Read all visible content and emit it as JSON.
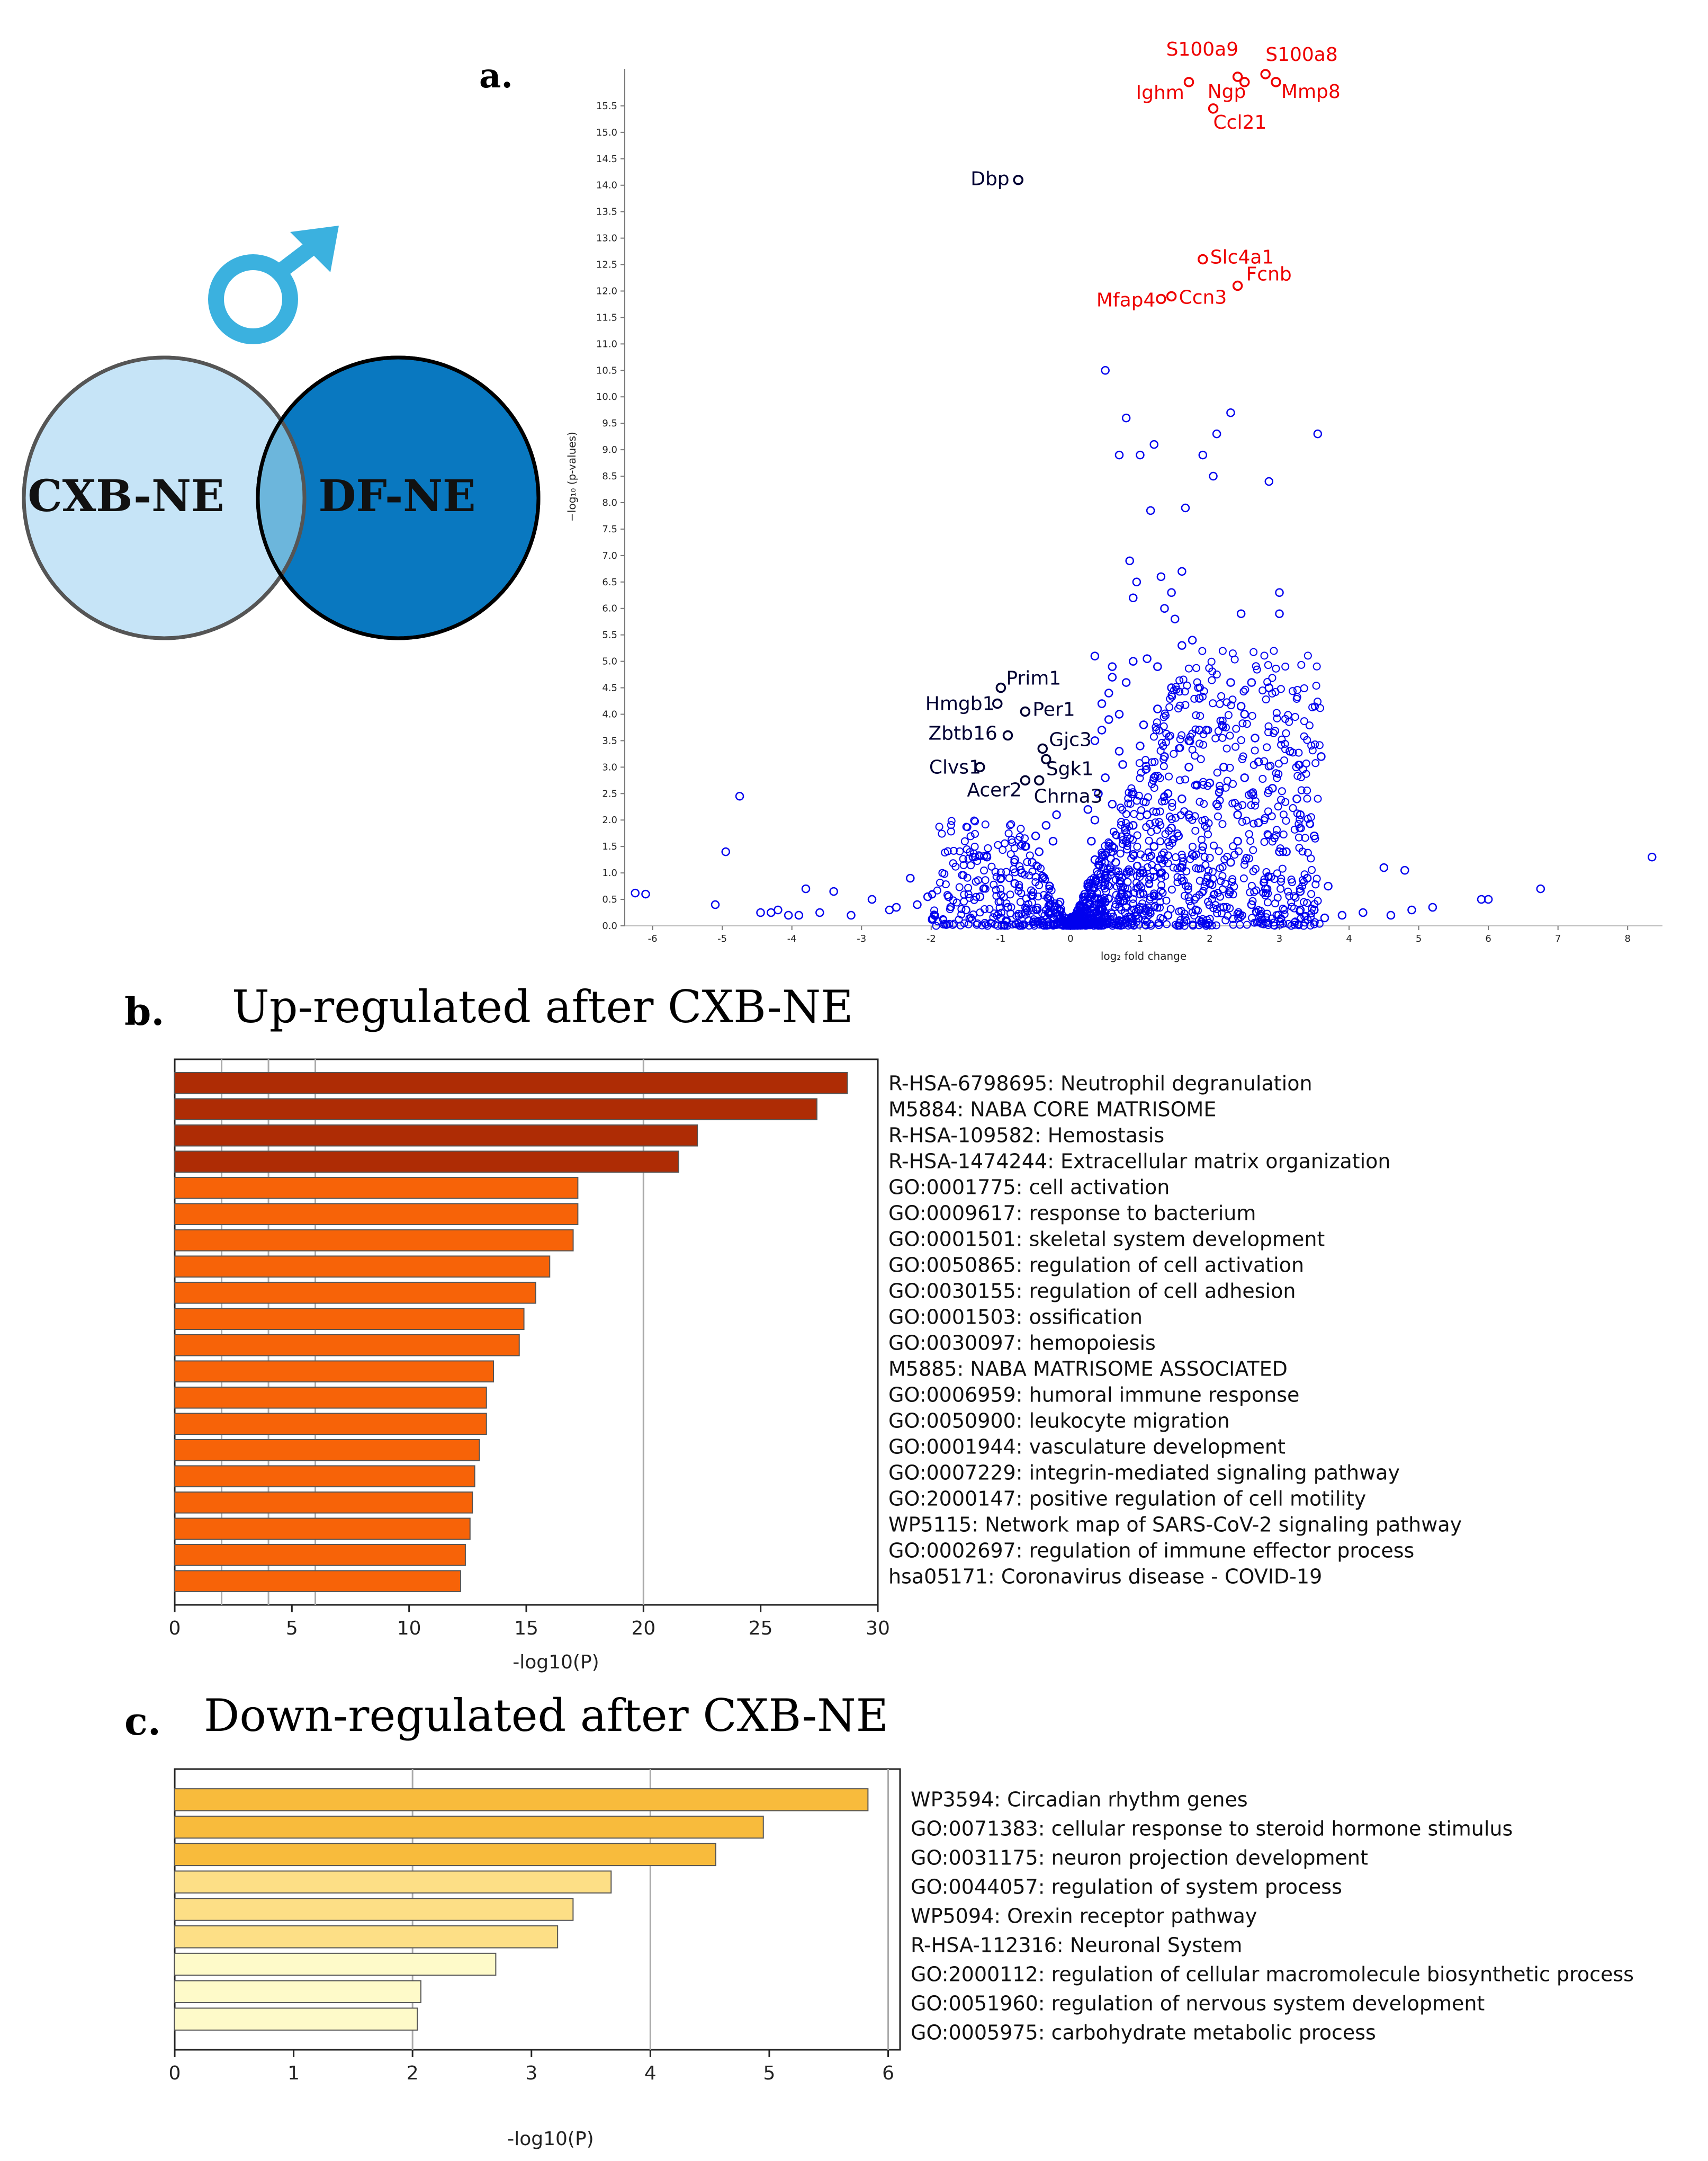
{
  "venn": {
    "left_label": "CXB-NE",
    "right_label": "DF-NE",
    "symbol_name": "male-symbol",
    "colors": {
      "left": "#c6e4f7",
      "right": "#0978c0",
      "overlap": "#6cb6dc",
      "symbol": "#3bb1df"
    }
  },
  "panels": {
    "a": "a.",
    "b": "b.",
    "c": "c."
  },
  "titles": {
    "b": "Up-regulated after CXB-NE",
    "c": "Down-regulated after CXB-NE"
  },
  "chart_data": [
    {
      "id": "volcano",
      "type": "scatter",
      "title": "",
      "xlabel": "log₂ fold change",
      "ylabel": "−log₁₀ (p-values)",
      "xlim": [
        -6.4,
        8.5
      ],
      "ylim": [
        0,
        16.2
      ],
      "xticks": [
        -6,
        -5,
        -4,
        -3,
        -2,
        -1,
        0,
        1,
        2,
        3,
        4,
        5,
        6,
        7,
        8
      ],
      "yticks": [
        0.0,
        0.5,
        1.0,
        1.5,
        2.0,
        2.5,
        3.0,
        3.5,
        4.0,
        4.5,
        5.0,
        5.5,
        6.0,
        6.5,
        7.0,
        7.5,
        8.0,
        8.5,
        9.0,
        9.5,
        10.0,
        10.5,
        11.0,
        11.5,
        12.0,
        12.5,
        13.0,
        13.5,
        14.0,
        14.5,
        15.0,
        15.5
      ],
      "colors": {
        "background": "#0000ee",
        "up": "#ee0000",
        "down": "#000033"
      },
      "labeled_up": [
        {
          "label": "S100a9",
          "x": 2.4,
          "y": 16.05
        },
        {
          "label": "S100a8",
          "x": 2.8,
          "y": 16.1
        },
        {
          "label": "Ighm",
          "x": 1.7,
          "y": 15.95
        },
        {
          "label": "Ngp",
          "x": 2.5,
          "y": 15.95
        },
        {
          "label": "Mmp8",
          "x": 2.95,
          "y": 15.95
        },
        {
          "label": "Ccl21",
          "x": 2.05,
          "y": 15.45
        },
        {
          "label": "Slc4a1",
          "x": 1.9,
          "y": 12.6
        },
        {
          "label": "Fcnb",
          "x": 2.4,
          "y": 12.1
        },
        {
          "label": "Mfap4",
          "x": 1.3,
          "y": 11.85
        },
        {
          "label": "Ccn3",
          "x": 1.45,
          "y": 11.9
        }
      ],
      "labeled_down": [
        {
          "label": "Dbp",
          "x": -0.75,
          "y": 14.1
        },
        {
          "label": "Prim1",
          "x": -1.0,
          "y": 4.5
        },
        {
          "label": "Hmgb1",
          "x": -1.05,
          "y": 4.2
        },
        {
          "label": "Per1",
          "x": -0.65,
          "y": 4.05
        },
        {
          "label": "Zbtb16",
          "x": -0.9,
          "y": 3.6
        },
        {
          "label": "Gjc3",
          "x": -0.4,
          "y": 3.35
        },
        {
          "label": "Sgk1",
          "x": -0.35,
          "y": 3.15
        },
        {
          "label": "Clvs1",
          "x": -1.3,
          "y": 3.0
        },
        {
          "label": "Acer2",
          "x": -0.65,
          "y": 2.75
        },
        {
          "label": "Chrna3",
          "x": -0.45,
          "y": 2.75
        }
      ],
      "background_points": [
        [
          0.5,
          10.5
        ],
        [
          0.8,
          9.6
        ],
        [
          1.2,
          9.1
        ],
        [
          2.1,
          9.3
        ],
        [
          2.3,
          9.7
        ],
        [
          3.55,
          9.3
        ],
        [
          0.7,
          8.9
        ],
        [
          1.0,
          8.9
        ],
        [
          1.9,
          8.9
        ],
        [
          2.05,
          8.5
        ],
        [
          2.85,
          8.4
        ],
        [
          1.15,
          7.85
        ],
        [
          1.65,
          7.9
        ],
        [
          0.85,
          6.9
        ],
        [
          1.6,
          6.7
        ],
        [
          0.95,
          6.5
        ],
        [
          1.3,
          6.6
        ],
        [
          1.45,
          6.3
        ],
        [
          0.9,
          6.2
        ],
        [
          1.35,
          6.0
        ],
        [
          1.5,
          5.8
        ],
        [
          2.45,
          5.9
        ],
        [
          3.0,
          6.3
        ],
        [
          3.0,
          5.9
        ],
        [
          1.6,
          5.3
        ],
        [
          1.75,
          5.4
        ],
        [
          0.9,
          5.0
        ],
        [
          0.35,
          5.1
        ],
        [
          0.6,
          4.9
        ],
        [
          1.1,
          5.05
        ],
        [
          1.25,
          4.9
        ],
        [
          2.3,
          4.6
        ],
        [
          2.6,
          4.6
        ],
        [
          2.85,
          4.5
        ],
        [
          0.6,
          4.7
        ],
        [
          0.8,
          4.6
        ],
        [
          1.45,
          4.5
        ],
        [
          1.85,
          4.3
        ],
        [
          2.45,
          4.15
        ],
        [
          2.5,
          4.0
        ],
        [
          0.45,
          4.2
        ],
        [
          0.55,
          3.9
        ],
        [
          1.05,
          3.8
        ],
        [
          1.85,
          3.7
        ],
        [
          1.95,
          3.7
        ],
        [
          2.65,
          3.55
        ],
        [
          3.15,
          3.3
        ],
        [
          3.6,
          3.2
        ],
        [
          0.35,
          3.5
        ],
        [
          0.7,
          3.3
        ],
        [
          1.35,
          3.2
        ],
        [
          1.7,
          3.0
        ],
        [
          2.7,
          3.1
        ],
        [
          1.2,
          2.8
        ],
        [
          2.0,
          2.7
        ],
        [
          2.6,
          2.5
        ],
        [
          3.25,
          2.4
        ],
        [
          1.6,
          2.4
        ],
        [
          2.1,
          2.3
        ],
        [
          0.4,
          2.5
        ],
        [
          0.6,
          2.3
        ],
        [
          2.4,
          2.1
        ],
        [
          2.7,
          1.95
        ],
        [
          3.1,
          1.4
        ],
        [
          3.0,
          1.4
        ],
        [
          0.9,
          1.9
        ],
        [
          1.55,
          1.7
        ],
        [
          0.35,
          2.0
        ],
        [
          0.3,
          1.6
        ],
        [
          -0.25,
          1.6
        ],
        [
          -0.45,
          1.4
        ],
        [
          -0.55,
          1.2
        ],
        [
          -0.7,
          1.0
        ],
        [
          -0.8,
          0.8
        ],
        [
          -1.2,
          1.3
        ],
        [
          -1.4,
          1.3
        ],
        [
          -1.75,
          0.55
        ],
        [
          -2.05,
          0.55
        ],
        [
          -2.3,
          0.9
        ],
        [
          -2.85,
          0.5
        ],
        [
          -3.4,
          0.65
        ],
        [
          -3.8,
          0.7
        ],
        [
          -4.2,
          0.3
        ],
        [
          -4.75,
          2.45
        ],
        [
          -4.95,
          1.4
        ],
        [
          -5.1,
          0.4
        ],
        [
          -6.1,
          0.6
        ],
        [
          -6.25,
          0.62
        ],
        [
          -3.15,
          0.2
        ],
        [
          -3.6,
          0.25
        ],
        [
          -3.9,
          0.2
        ],
        [
          -4.05,
          0.2
        ],
        [
          -4.3,
          0.25
        ],
        [
          -4.45,
          0.25
        ],
        [
          -2.6,
          0.3
        ],
        [
          -2.5,
          0.35
        ],
        [
          -1.95,
          0.2
        ],
        [
          -1.5,
          0.3
        ],
        [
          -2.2,
          0.4
        ],
        [
          3.4,
          0.9
        ],
        [
          3.7,
          0.75
        ],
        [
          3.9,
          0.2
        ],
        [
          4.2,
          0.25
        ],
        [
          4.6,
          0.2
        ],
        [
          4.9,
          0.3
        ],
        [
          5.2,
          0.35
        ],
        [
          4.5,
          1.1
        ],
        [
          4.8,
          1.05
        ],
        [
          5.9,
          0.5
        ],
        [
          6.0,
          0.5
        ],
        [
          6.75,
          0.7
        ],
        [
          8.35,
          1.3
        ],
        [
          3.3,
          0.3
        ],
        [
          3.5,
          0.3
        ],
        [
          3.65,
          0.15
        ],
        [
          0.5,
          0.15
        ],
        [
          0.7,
          0.1
        ],
        [
          -0.6,
          0.1
        ],
        [
          -1.0,
          0.15
        ],
        [
          1.4,
          0.2
        ],
        [
          1.8,
          0.3
        ],
        [
          2.2,
          0.35
        ],
        [
          2.6,
          0.4
        ],
        [
          0.15,
          0.4
        ],
        [
          -0.15,
          0.45
        ],
        [
          0.25,
          0.8
        ],
        [
          -0.3,
          0.75
        ],
        [
          0.45,
          0.5
        ],
        [
          1.0,
          0.6
        ],
        [
          1.3,
          1.0
        ],
        [
          1.6,
          1.1
        ],
        [
          2.0,
          0.8
        ],
        [
          2.3,
          1.2
        ],
        [
          2.8,
          0.7
        ],
        [
          3.3,
          0.65
        ],
        [
          0.8,
          0.35
        ],
        [
          -0.9,
          0.35
        ],
        [
          -1.3,
          0.55
        ],
        [
          -0.4,
          0.9
        ],
        [
          0.35,
          1.25
        ],
        [
          0.6,
          1.5
        ],
        [
          0.9,
          1.35
        ],
        [
          1.1,
          2.1
        ],
        [
          1.4,
          2.5
        ],
        [
          0.5,
          2.8
        ],
        [
          0.75,
          3.05
        ],
        [
          1.0,
          3.4
        ],
        [
          1.25,
          4.1
        ],
        [
          0.45,
          3.7
        ],
        [
          0.55,
          4.4
        ],
        [
          0.7,
          4.0
        ],
        [
          1.7,
          3.5
        ],
        [
          2.2,
          3.0
        ],
        [
          2.5,
          2.8
        ],
        [
          2.9,
          2.6
        ],
        [
          3.3,
          2.1
        ],
        [
          3.5,
          1.7
        ],
        [
          1.9,
          1.5
        ],
        [
          2.4,
          1.6
        ],
        [
          1.7,
          2.1
        ],
        [
          0.25,
          2.2
        ],
        [
          -0.2,
          2.1
        ],
        [
          -0.35,
          1.9
        ],
        [
          -0.5,
          1.7
        ],
        [
          -0.65,
          1.5
        ],
        [
          -0.8,
          1.25
        ],
        [
          -1.0,
          0.9
        ],
        [
          0.3,
          0.6
        ],
        [
          0.5,
          0.9
        ],
        [
          0.65,
          1.2
        ],
        [
          0.8,
          1.6
        ],
        [
          1.0,
          1.0
        ],
        [
          1.2,
          1.5
        ],
        [
          1.45,
          1.85
        ],
        [
          1.75,
          1.35
        ]
      ]
    },
    {
      "id": "up-regulated",
      "type": "bar",
      "orientation": "horizontal",
      "title": "Up-regulated after CXB-NE",
      "xlabel": "-log10(P)",
      "ylabel": "",
      "xlim": [
        0,
        30
      ],
      "xticks": [
        0,
        5,
        10,
        15,
        20,
        25,
        30
      ],
      "grid_x": [
        2,
        4,
        6,
        20
      ],
      "categories": [
        "R-HSA-6798695: Neutrophil degranulation",
        "M5884: NABA CORE MATRISOME",
        "R-HSA-109582: Hemostasis",
        "R-HSA-1474244: Extracellular matrix organization",
        "GO:0001775: cell activation",
        "GO:0009617: response to bacterium",
        "GO:0001501: skeletal system development",
        "GO:0050865: regulation of cell activation",
        "GO:0030155: regulation of cell adhesion",
        "GO:0001503: ossification",
        "GO:0030097: hemopoiesis",
        "M5885: NABA MATRISOME ASSOCIATED",
        "GO:0006959: humoral immune response",
        "GO:0050900: leukocyte migration",
        "GO:0001944: vasculature development",
        "GO:0007229: integrin-mediated signaling pathway",
        "GO:2000147: positive regulation of cell motility",
        "WP5115: Network map of SARS-CoV-2 signaling pathway",
        "GO:0002697: regulation of immune effector process",
        "hsa05171: Coronavirus disease - COVID-19"
      ],
      "values": [
        28.7,
        27.4,
        22.3,
        21.5,
        17.2,
        17.2,
        17.0,
        16.0,
        15.4,
        14.9,
        14.7,
        13.6,
        13.3,
        13.3,
        13.0,
        12.8,
        12.7,
        12.6,
        12.4,
        12.2
      ],
      "bar_colors": [
        "#ae2c05",
        "#ae2c05",
        "#ae2c05",
        "#ae2c05",
        "#f76308",
        "#f76308",
        "#f76308",
        "#f76308",
        "#f76308",
        "#f76308",
        "#f76308",
        "#f76308",
        "#f76308",
        "#f76308",
        "#f76308",
        "#f76308",
        "#f76308",
        "#f76308",
        "#f76308",
        "#f76308"
      ]
    },
    {
      "id": "down-regulated",
      "type": "bar",
      "orientation": "horizontal",
      "title": "Down-regulated after CXB-NE",
      "xlabel": "-log10(P)",
      "ylabel": "",
      "xlim": [
        0,
        6.1
      ],
      "xticks": [
        0,
        1,
        2,
        3,
        4,
        5,
        6
      ],
      "grid_x": [
        2,
        4,
        6
      ],
      "categories": [
        "WP3594: Circadian rhythm genes",
        "GO:0071383: cellular response to steroid hormone stimulus",
        "GO:0031175: neuron projection development",
        "GO:0044057: regulation of system process",
        "WP5094: Orexin receptor pathway",
        "R-HSA-112316: Neuronal System",
        "GO:2000112: regulation of cellular macromolecule biosynthetic process",
        "GO:0051960: regulation of nervous system development",
        "GO:0005975: carbohydrate metabolic process"
      ],
      "values": [
        5.83,
        4.95,
        4.55,
        3.67,
        3.35,
        3.22,
        2.7,
        2.07,
        2.04
      ],
      "bar_colors": [
        "#f8bb3c",
        "#f8bb3c",
        "#f8bb3c",
        "#fddf86",
        "#fddf86",
        "#fddf86",
        "#fefac9",
        "#fefac9",
        "#fefac9"
      ]
    }
  ]
}
